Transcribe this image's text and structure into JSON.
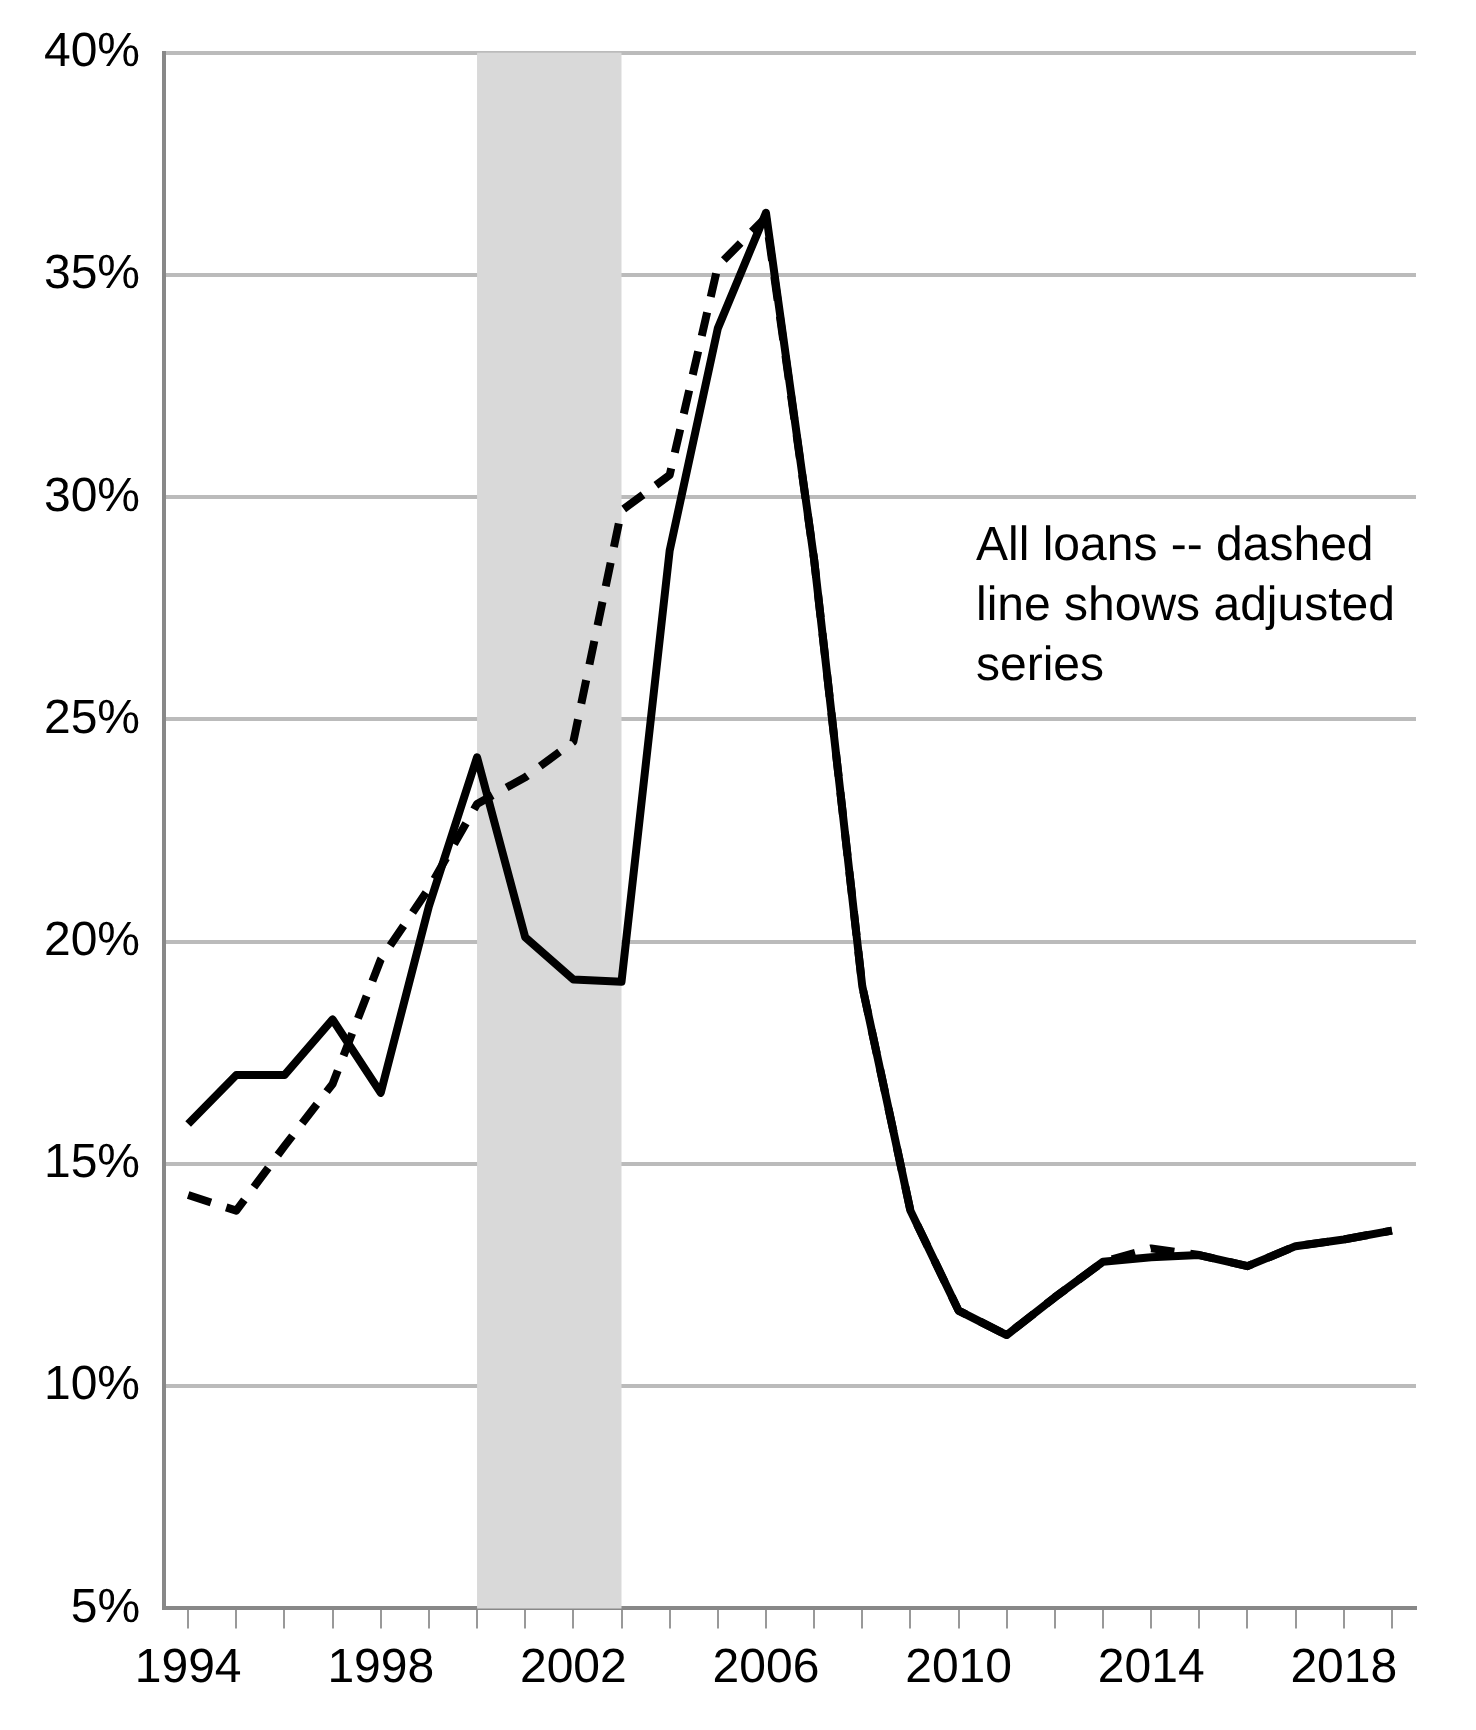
{
  "chart_data": {
    "type": "line",
    "x": [
      1994,
      1995,
      1996,
      1997,
      1998,
      1999,
      2000,
      2001,
      2002,
      2003,
      2004,
      2005,
      2006,
      2007,
      2008,
      2009,
      2010,
      2011,
      2012,
      2013,
      2014,
      2015,
      2016,
      2017,
      2018,
      2019
    ],
    "series": [
      {
        "color": "#000000",
        "line_style": "solid",
        "values": [
          15.9,
          17.0,
          17.0,
          18.25,
          16.6,
          20.8,
          24.15,
          20.1,
          19.15,
          19.1,
          28.8,
          33.8,
          36.4,
          28.6,
          19.0,
          13.95,
          11.7,
          11.15,
          12.0,
          12.8,
          12.9,
          12.95,
          12.7,
          13.15,
          13.3,
          13.5
        ]
      },
      {
        "color": "#000000",
        "line_style": "dashed",
        "values": [
          14.3,
          13.95,
          15.4,
          16.8,
          19.6,
          21.2,
          23.1,
          23.7,
          24.5,
          29.7,
          30.5,
          35.2,
          36.3,
          28.6,
          19.0,
          13.95,
          11.7,
          11.15,
          12.0,
          12.8,
          13.1,
          12.95,
          12.7,
          13.15,
          13.3,
          13.5
        ]
      }
    ],
    "xlim": [
      1993.5,
      2019.5
    ],
    "xticks": [
      {
        "value": 1994,
        "label": "1994"
      },
      {
        "value": 1995,
        "label": null
      },
      {
        "value": 1996,
        "label": null
      },
      {
        "value": 1997,
        "label": null
      },
      {
        "value": 1998,
        "label": "1998"
      },
      {
        "value": 1999,
        "label": null
      },
      {
        "value": 2000,
        "label": null
      },
      {
        "value": 2001,
        "label": null
      },
      {
        "value": 2002,
        "label": "2002"
      },
      {
        "value": 2003,
        "label": null
      },
      {
        "value": 2004,
        "label": null
      },
      {
        "value": 2005,
        "label": null
      },
      {
        "value": 2006,
        "label": "2006"
      },
      {
        "value": 2007,
        "label": null
      },
      {
        "value": 2008,
        "label": null
      },
      {
        "value": 2009,
        "label": null
      },
      {
        "value": 2010,
        "label": "2010"
      },
      {
        "value": 2011,
        "label": null
      },
      {
        "value": 2012,
        "label": null
      },
      {
        "value": 2013,
        "label": null
      },
      {
        "value": 2014,
        "label": "2014"
      },
      {
        "value": 2015,
        "label": null
      },
      {
        "value": 2016,
        "label": null
      },
      {
        "value": 2017,
        "label": null
      },
      {
        "value": 2018,
        "label": "2018"
      },
      {
        "value": 2019,
        "label": null
      }
    ],
    "ylim": [
      5,
      40
    ],
    "yticks": [
      {
        "value": 5,
        "label": "5%"
      },
      {
        "value": 10,
        "label": "10%"
      },
      {
        "value": 15,
        "label": "15%"
      },
      {
        "value": 20,
        "label": "20%"
      },
      {
        "value": 25,
        "label": "25%"
      },
      {
        "value": 30,
        "label": "30%"
      },
      {
        "value": 35,
        "label": "35%"
      },
      {
        "value": 40,
        "label": "40%"
      }
    ],
    "bands": [
      {
        "axis": "x",
        "from": 2000,
        "to": 2003,
        "color": "#d9d9d9"
      }
    ],
    "annotations": [
      "All loans -- dashed line shows adjusted series"
    ],
    "grid": "y",
    "legend": false,
    "marker": "none"
  }
}
